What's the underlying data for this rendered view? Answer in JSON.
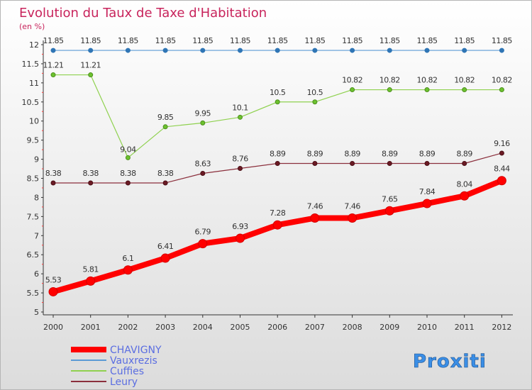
{
  "chart_data": {
    "type": "line",
    "title": "Evolution du Taux de Taxe d'Habitation",
    "subtitle": "(en %)",
    "x": [
      "2000",
      "2001",
      "2002",
      "2003",
      "2004",
      "2005",
      "2006",
      "2007",
      "2008",
      "2009",
      "2010",
      "2011",
      "2012"
    ],
    "ylim": [
      5,
      12
    ],
    "yticks": [
      "5",
      "5.5",
      "6",
      "6.5",
      "7",
      "7.5",
      "8",
      "8.5",
      "9",
      "9.5",
      "10",
      "10.5",
      "11",
      "11.5",
      "12"
    ],
    "grid": false,
    "legend_position": "bottom-left",
    "series": [
      {
        "name": "CHAVIGNY",
        "color": "#ff0000",
        "values": [
          5.53,
          5.81,
          6.1,
          6.41,
          6.79,
          6.93,
          7.28,
          7.46,
          7.46,
          7.65,
          7.84,
          8.04,
          8.44
        ],
        "labels": [
          "5.53",
          "5.81",
          "6.1",
          "6.41",
          "6.79",
          "6.93",
          "7.28",
          "7.46",
          "7.46",
          "7.65",
          "7.84",
          "8.04",
          "8.44"
        ]
      },
      {
        "name": "Vauxrezis",
        "color": "#5b9bd5",
        "values": [
          11.85,
          11.85,
          11.85,
          11.85,
          11.85,
          11.85,
          11.85,
          11.85,
          11.85,
          11.85,
          11.85,
          11.85,
          11.85
        ],
        "labels": [
          "11.85",
          "11.85",
          "11.85",
          "11.85",
          "11.85",
          "11.85",
          "11.85",
          "11.85",
          "11.85",
          "11.85",
          "11.85",
          "11.85",
          "11.85"
        ]
      },
      {
        "name": "Cuffies",
        "color": "#8fd14f",
        "values": [
          11.21,
          11.21,
          9.04,
          9.85,
          9.95,
          10.1,
          10.5,
          10.5,
          10.82,
          10.82,
          10.82,
          10.82,
          10.82
        ],
        "labels": [
          "11.21",
          "11.21",
          "9.04",
          "9.85",
          "9.95",
          "10.1",
          "10.5",
          "10.5",
          "10.82",
          "10.82",
          "10.82",
          "10.82",
          "10.82"
        ]
      },
      {
        "name": "Leury",
        "color": "#8b2f3c",
        "values": [
          8.38,
          8.38,
          8.38,
          8.38,
          8.63,
          8.76,
          8.89,
          8.89,
          8.89,
          8.89,
          8.89,
          8.89,
          9.16
        ],
        "labels": [
          "8.38",
          "8.38",
          "8.38",
          "8.38",
          "8.63",
          "8.76",
          "8.89",
          "8.89",
          "8.89",
          "8.89",
          "8.89",
          "8.89",
          "9.16"
        ]
      }
    ]
  },
  "logo": {
    "text": "Proxiti"
  }
}
